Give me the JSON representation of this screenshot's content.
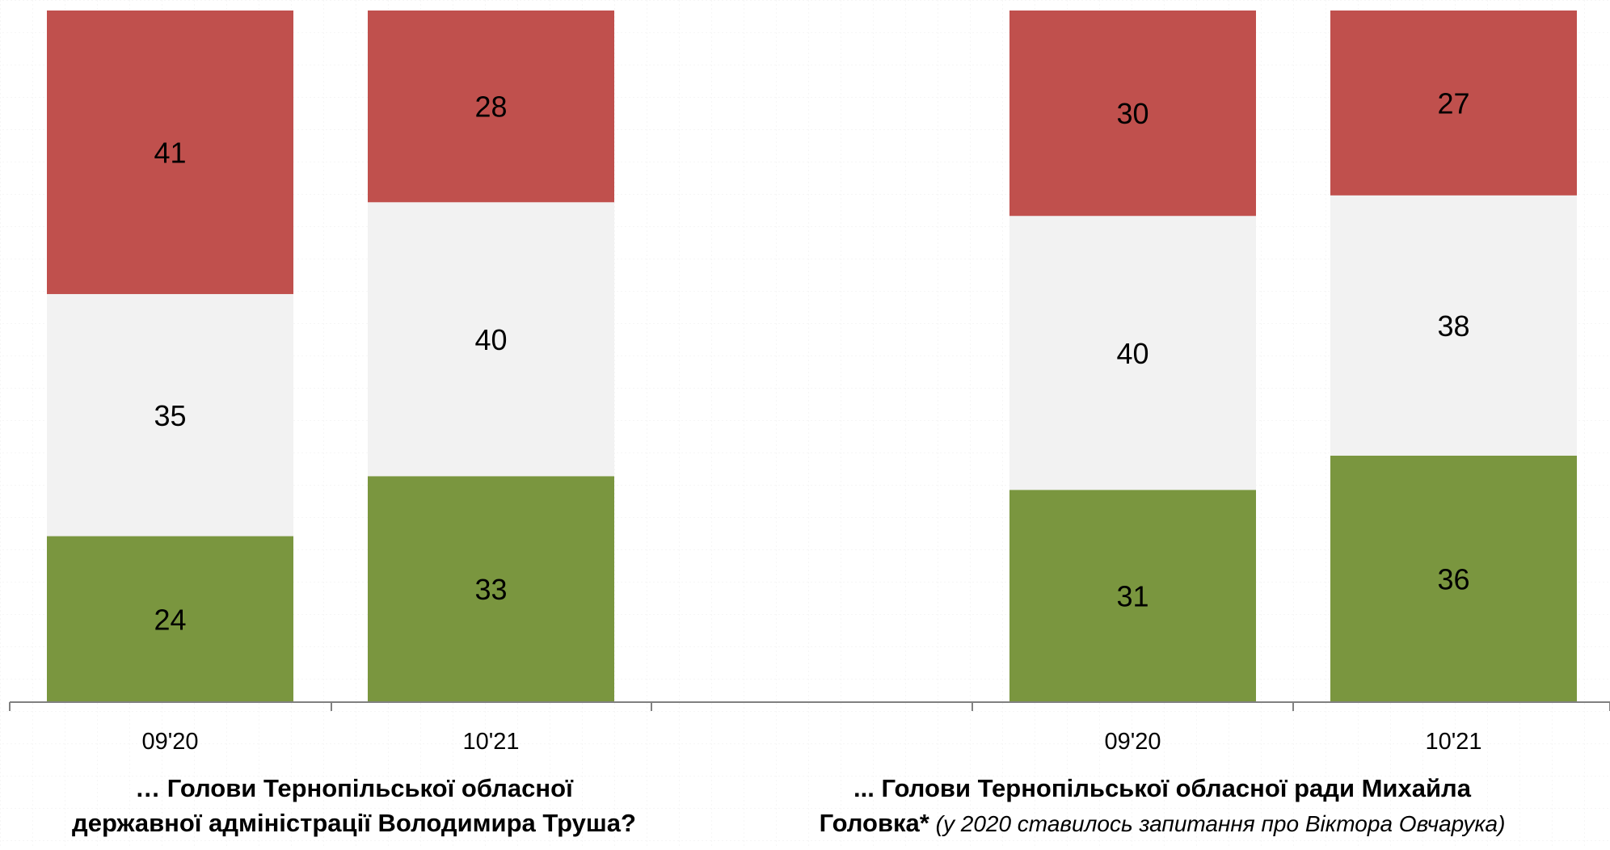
{
  "chart_data": {
    "type": "bar",
    "stacked": true,
    "colors": {
      "positive": "#7a963f",
      "neutral": "#f2f2f2",
      "negative": "#c0504d",
      "axis": "#808080"
    },
    "groups": [
      {
        "title_bold": "… Голови Тернопільської обласної державної адміністрації Володимира Труша?",
        "title_bold_lines": [
          "… Голови Тернопільської обласної",
          "державної адміністрації Володимира Труша?"
        ],
        "title_italic": "",
        "categories": [
          "09'20",
          "10'21"
        ],
        "series": [
          {
            "key": "positive",
            "values": [
              24,
              33
            ]
          },
          {
            "key": "neutral",
            "values": [
              35,
              40
            ]
          },
          {
            "key": "negative",
            "values": [
              41,
              28
            ]
          }
        ]
      },
      {
        "title_bold": "... Голови Тернопільської обласної ради Михайла Головка*",
        "title_bold_lines": [
          "... Голови Тернопільської обласної ради Михайла",
          "Головка*"
        ],
        "title_italic": "(у 2020 ставилось запитання про Віктора Овчарука)",
        "categories": [
          "09'20",
          "10'21"
        ],
        "series": [
          {
            "key": "positive",
            "values": [
              31,
              36
            ]
          },
          {
            "key": "neutral",
            "values": [
              40,
              38
            ]
          },
          {
            "key": "negative",
            "values": [
              30,
              27
            ]
          }
        ]
      }
    ]
  }
}
